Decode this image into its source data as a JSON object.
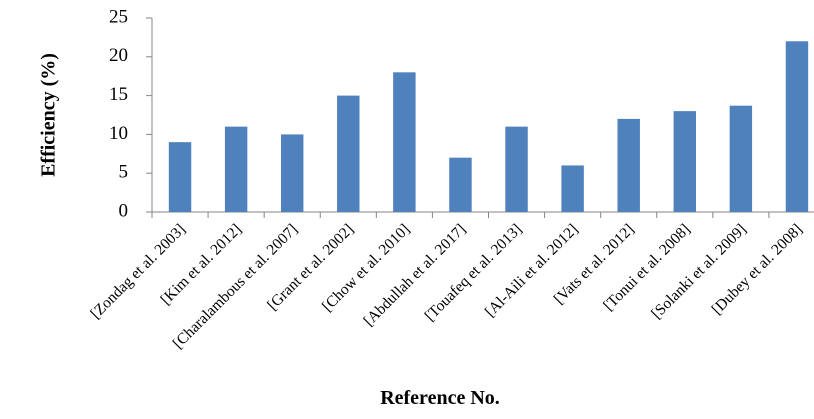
{
  "chart_data": {
    "type": "bar",
    "categories": [
      "[Zondag et al. 2003]",
      "[Kim et al. 2012]",
      "[Charalambous et al. 2007]",
      "[Grant et al. 2002]",
      "[Chow et al. 2010]",
      "[Abdullah et al. 2017]",
      "[Touafeq et al. 2013]",
      "[Al-Aili et al. 2012]",
      "[Vats et al. 2012]",
      "[Tonui et al. 2008]",
      "[Solanki et al. 2009]",
      "[Dubey et al. 2008]"
    ],
    "values": [
      9,
      11,
      10,
      15,
      18,
      7,
      11,
      6,
      12,
      13,
      13.7,
      22
    ],
    "xlabel": "Reference No.",
    "ylabel": "Efficiency (%)",
    "ylim": [
      0,
      25
    ],
    "yticks": [
      0,
      5,
      10,
      15,
      20,
      25
    ],
    "grid": false,
    "legend": "none",
    "bar_color": "#4f81bd"
  }
}
